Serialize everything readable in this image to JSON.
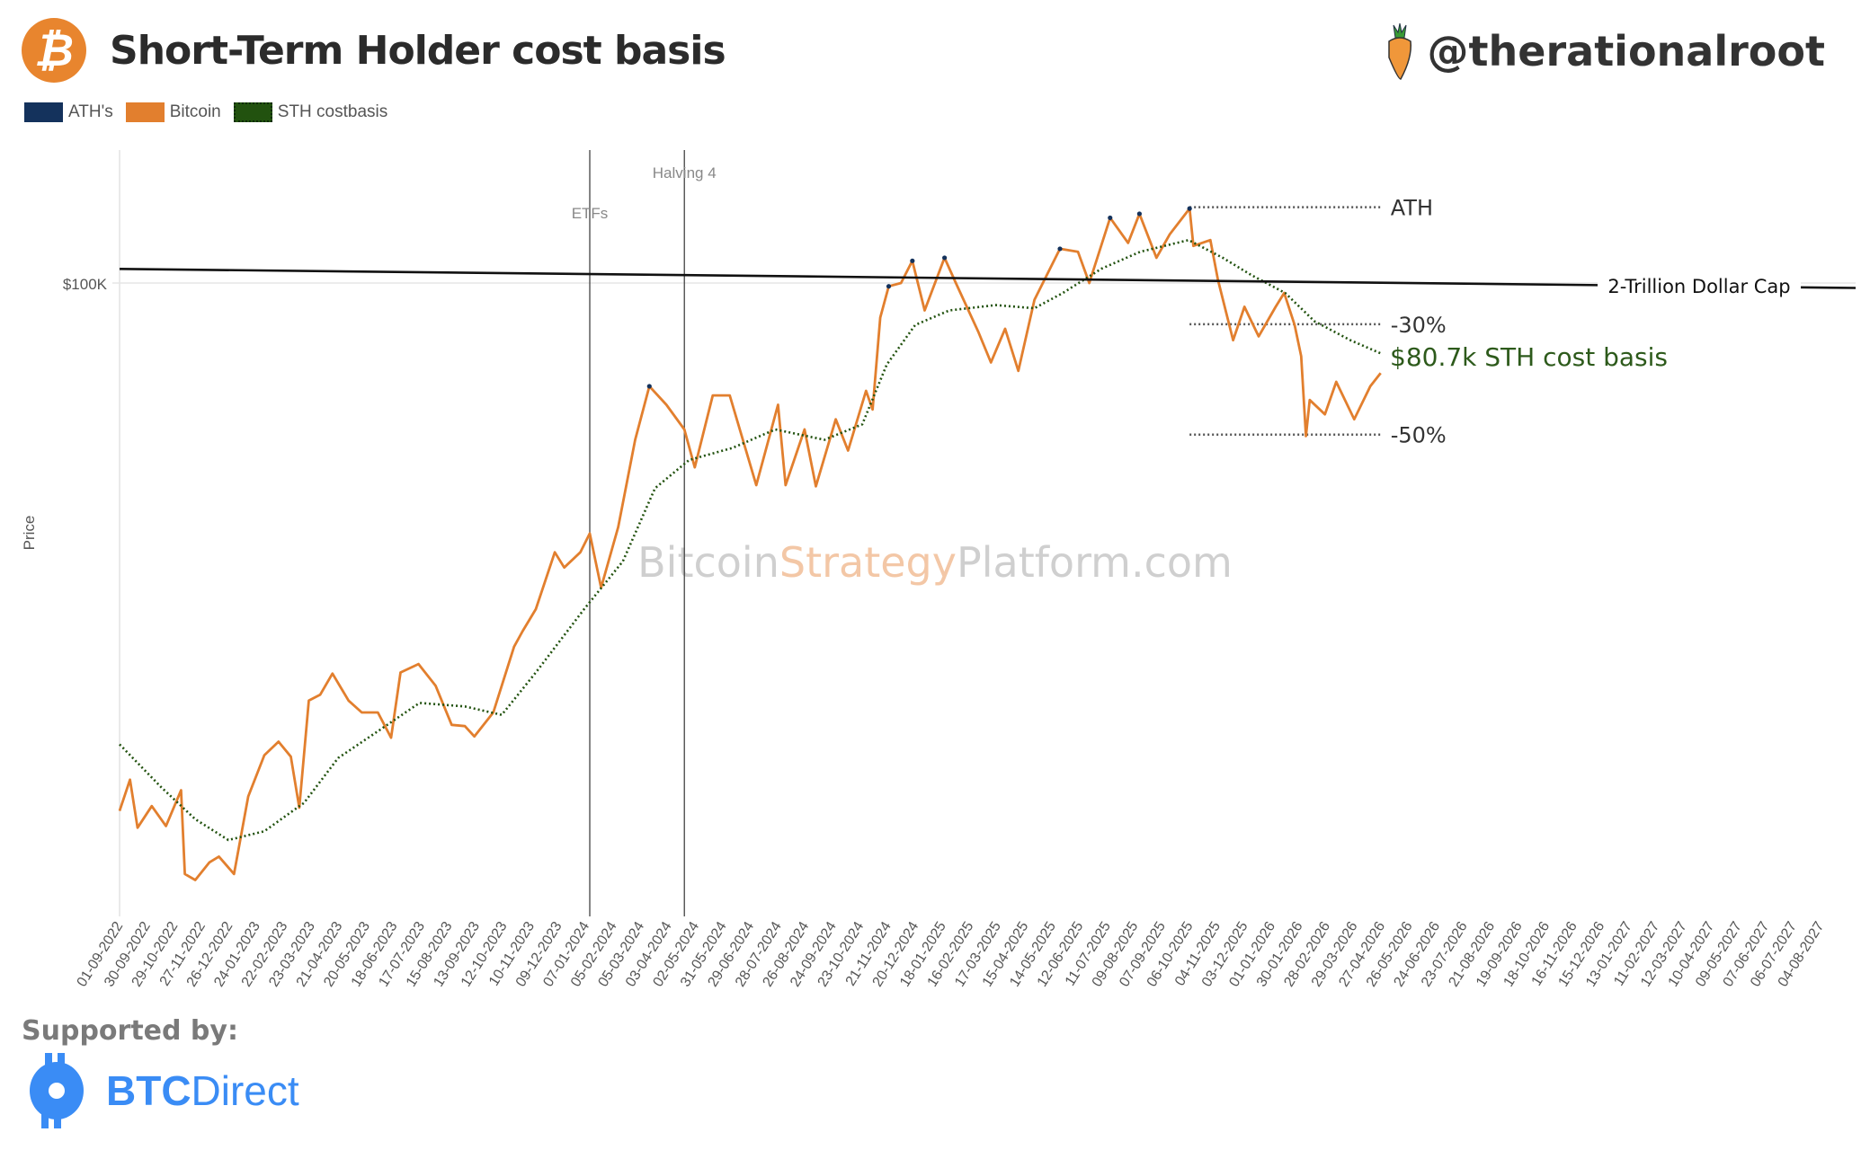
{
  "header": {
    "title": "Short-Term Holder cost basis",
    "handle": "@therationalroot",
    "logo_icon": "bitcoin-icon",
    "handle_icon": "carrot-icon"
  },
  "legend": [
    {
      "label": "ATH's",
      "color": "#14325c"
    },
    {
      "label": "Bitcoin",
      "color": "#e27f2e"
    },
    {
      "label": "STH costbasis",
      "color": "#22520f"
    }
  ],
  "footer": {
    "supported_by": "Supported by:",
    "sponsor_bold": "BTC",
    "sponsor_rest": "Direct",
    "sponsor_color": "#3a8cf5"
  },
  "watermark": {
    "part1": "Bitcoin",
    "part2": "Strategy",
    "part3": "Platform.com"
  },
  "chart_data": {
    "type": "line",
    "title": "Short-Term Holder cost basis",
    "xlabel": "",
    "ylabel": "Price",
    "y_scale": "log",
    "ylim": [
      14500,
      150000
    ],
    "xlim": [
      "2022-09-01",
      "2027-09-10"
    ],
    "y_ticks": [
      {
        "value": 100000,
        "label": "$100K"
      }
    ],
    "grid": "horizontal at $100K only",
    "legend_position": "top-left",
    "x_tick_labels": [
      "01-09-2022",
      "30-09-2022",
      "29-10-2022",
      "27-11-2022",
      "26-12-2022",
      "24-01-2023",
      "22-02-2023",
      "23-03-2023",
      "21-04-2023",
      "20-05-2023",
      "18-06-2023",
      "17-07-2023",
      "15-08-2023",
      "13-09-2023",
      "12-10-2023",
      "10-11-2023",
      "09-12-2023",
      "07-01-2024",
      "05-02-2024",
      "05-03-2024",
      "03-04-2024",
      "02-05-2024",
      "31-05-2024",
      "29-06-2024",
      "28-07-2024",
      "26-08-2024",
      "24-09-2024",
      "23-10-2024",
      "21-11-2024",
      "20-12-2024",
      "18-01-2025",
      "16-02-2025",
      "17-03-2025",
      "15-04-2025",
      "14-05-2025",
      "12-06-2025",
      "11-07-2025",
      "09-08-2025",
      "07-09-2025",
      "06-10-2025",
      "04-11-2025",
      "03-12-2025",
      "01-01-2026",
      "30-01-2026",
      "28-02-2026",
      "29-03-2026",
      "27-04-2026",
      "26-05-2026",
      "24-06-2026",
      "23-07-2026",
      "21-08-2026",
      "19-09-2026",
      "18-10-2026",
      "16-11-2026",
      "15-12-2026",
      "13-01-2027",
      "11-02-2027",
      "12-03-2027",
      "10-04-2027",
      "09-05-2027",
      "07-06-2027",
      "06-07-2027",
      "04-08-2027"
    ],
    "series": [
      {
        "name": "Bitcoin",
        "color": "#e27f2e",
        "points": [
          [
            "2022-09-01",
            20000
          ],
          [
            "2022-09-12",
            22000
          ],
          [
            "2022-09-20",
            19000
          ],
          [
            "2022-10-05",
            20300
          ],
          [
            "2022-10-20",
            19100
          ],
          [
            "2022-11-05",
            21300
          ],
          [
            "2022-11-09",
            16500
          ],
          [
            "2022-11-20",
            16200
          ],
          [
            "2022-12-05",
            17100
          ],
          [
            "2022-12-15",
            17400
          ],
          [
            "2022-12-31",
            16500
          ],
          [
            "2023-01-15",
            20900
          ],
          [
            "2023-02-01",
            23700
          ],
          [
            "2023-02-16",
            24700
          ],
          [
            "2023-03-01",
            23600
          ],
          [
            "2023-03-10",
            20200
          ],
          [
            "2023-03-20",
            28000
          ],
          [
            "2023-04-01",
            28500
          ],
          [
            "2023-04-14",
            30400
          ],
          [
            "2023-05-01",
            28000
          ],
          [
            "2023-05-15",
            27000
          ],
          [
            "2023-06-01",
            27000
          ],
          [
            "2023-06-15",
            25000
          ],
          [
            "2023-06-25",
            30500
          ],
          [
            "2023-07-14",
            31300
          ],
          [
            "2023-08-01",
            29300
          ],
          [
            "2023-08-18",
            26000
          ],
          [
            "2023-09-01",
            25900
          ],
          [
            "2023-09-11",
            25100
          ],
          [
            "2023-10-01",
            27000
          ],
          [
            "2023-10-23",
            33000
          ],
          [
            "2023-11-01",
            34600
          ],
          [
            "2023-11-15",
            37000
          ],
          [
            "2023-12-05",
            44000
          ],
          [
            "2023-12-15",
            42000
          ],
          [
            "2024-01-01",
            44000
          ],
          [
            "2024-01-11",
            46600
          ],
          [
            "2024-01-23",
            39500
          ],
          [
            "2024-02-10",
            47500
          ],
          [
            "2024-02-28",
            62000
          ],
          [
            "2024-03-14",
            73000
          ],
          [
            "2024-04-01",
            69000
          ],
          [
            "2024-04-20",
            64000
          ],
          [
            "2024-05-01",
            57000
          ],
          [
            "2024-05-20",
            71000
          ],
          [
            "2024-06-07",
            71000
          ],
          [
            "2024-07-05",
            54000
          ],
          [
            "2024-07-28",
            69000
          ],
          [
            "2024-08-05",
            54000
          ],
          [
            "2024-08-25",
            64000
          ],
          [
            "2024-09-06",
            53800
          ],
          [
            "2024-09-27",
            66000
          ],
          [
            "2024-10-10",
            60000
          ],
          [
            "2024-10-29",
            72000
          ],
          [
            "2024-11-05",
            68000
          ],
          [
            "2024-11-13",
            90000
          ],
          [
            "2024-11-22",
            99000
          ],
          [
            "2024-12-05",
            100000
          ],
          [
            "2024-12-17",
            107000
          ],
          [
            "2024-12-30",
            92000
          ],
          [
            "2025-01-20",
            108000
          ],
          [
            "2025-02-01",
            100000
          ],
          [
            "2025-02-25",
            86000
          ],
          [
            "2025-03-10",
            78500
          ],
          [
            "2025-03-25",
            87000
          ],
          [
            "2025-04-08",
            76500
          ],
          [
            "2025-04-25",
            95000
          ],
          [
            "2025-05-22",
            111000
          ],
          [
            "2025-06-10",
            110000
          ],
          [
            "2025-06-22",
            100000
          ],
          [
            "2025-07-14",
            122000
          ],
          [
            "2025-08-02",
            113000
          ],
          [
            "2025-08-14",
            123500
          ],
          [
            "2025-09-01",
            108000
          ],
          [
            "2025-09-15",
            116000
          ],
          [
            "2025-10-06",
            125500
          ],
          [
            "2025-10-10",
            112000
          ],
          [
            "2025-10-28",
            114000
          ],
          [
            "2025-11-05",
            101000
          ],
          [
            "2025-11-21",
            84000
          ],
          [
            "2025-12-03",
            93000
          ],
          [
            "2025-12-18",
            85000
          ],
          [
            "2026-01-05",
            93000
          ],
          [
            "2026-01-14",
            97000
          ],
          [
            "2026-01-25",
            88000
          ],
          [
            "2026-02-01",
            80000
          ],
          [
            "2026-02-06",
            62700
          ],
          [
            "2026-02-10",
            70000
          ],
          [
            "2026-02-26",
            67000
          ],
          [
            "2026-03-10",
            74000
          ],
          [
            "2026-03-29",
            66000
          ],
          [
            "2026-04-15",
            73000
          ],
          [
            "2026-04-26",
            76000
          ]
        ]
      },
      {
        "name": "STH costbasis",
        "color": "#22520f",
        "points": [
          [
            "2022-09-01",
            24500
          ],
          [
            "2022-10-15",
            21500
          ],
          [
            "2022-11-20",
            19500
          ],
          [
            "2022-12-25",
            18300
          ],
          [
            "2023-02-01",
            18800
          ],
          [
            "2023-03-15",
            20500
          ],
          [
            "2023-04-20",
            23500
          ],
          [
            "2023-06-01",
            25500
          ],
          [
            "2023-07-15",
            27800
          ],
          [
            "2023-09-01",
            27500
          ],
          [
            "2023-10-10",
            26800
          ],
          [
            "2023-11-15",
            30500
          ],
          [
            "2024-01-05",
            37000
          ],
          [
            "2024-02-15",
            42800
          ],
          [
            "2024-03-20",
            53500
          ],
          [
            "2024-04-25",
            58300
          ],
          [
            "2024-06-10",
            60500
          ],
          [
            "2024-07-25",
            64000
          ],
          [
            "2024-09-15",
            62000
          ],
          [
            "2024-10-25",
            65000
          ],
          [
            "2024-11-20",
            78000
          ],
          [
            "2024-12-20",
            88000
          ],
          [
            "2025-01-25",
            92000
          ],
          [
            "2025-03-15",
            93500
          ],
          [
            "2025-04-25",
            92600
          ],
          [
            "2025-05-25",
            97000
          ],
          [
            "2025-07-05",
            104500
          ],
          [
            "2025-08-15",
            110000
          ],
          [
            "2025-10-05",
            114000
          ],
          [
            "2025-11-10",
            108000
          ],
          [
            "2025-12-10",
            102500
          ],
          [
            "2026-01-15",
            97000
          ],
          [
            "2026-02-15",
            89000
          ],
          [
            "2026-03-25",
            84000
          ],
          [
            "2026-04-26",
            80700
          ]
        ]
      },
      {
        "name": "2-Trillion Dollar Cap",
        "color": "#111111",
        "points": [
          [
            "2022-09-01",
            104400
          ],
          [
            "2027-09-10",
            98500
          ]
        ]
      }
    ],
    "ath_points": [
      [
        "2024-03-14",
        73000
      ],
      [
        "2024-11-22",
        99000
      ],
      [
        "2024-12-17",
        107000
      ],
      [
        "2025-01-20",
        108000
      ],
      [
        "2025-05-22",
        111000
      ],
      [
        "2025-07-14",
        122000
      ],
      [
        "2025-08-14",
        123500
      ],
      [
        "2025-10-06",
        125500
      ]
    ],
    "ath_color": "#14325c",
    "events": [
      {
        "date": "2024-01-11",
        "label": "ETFs"
      },
      {
        "date": "2024-04-20",
        "label": "Halving 4"
      }
    ],
    "levels": [
      {
        "label": "ATH",
        "value": 126000,
        "from": "2025-10-06",
        "to": "2026-04-26"
      },
      {
        "label": "-30%",
        "value": 88200,
        "from": "2025-10-06",
        "to": "2026-04-26"
      },
      {
        "label": "-50%",
        "value": 63000,
        "from": "2025-10-06",
        "to": "2026-04-26"
      }
    ],
    "cap_label": "2-Trillion Dollar Cap",
    "sth_label": "$80.7k STH cost basis",
    "sth_label_color": "#2d5a1b"
  }
}
